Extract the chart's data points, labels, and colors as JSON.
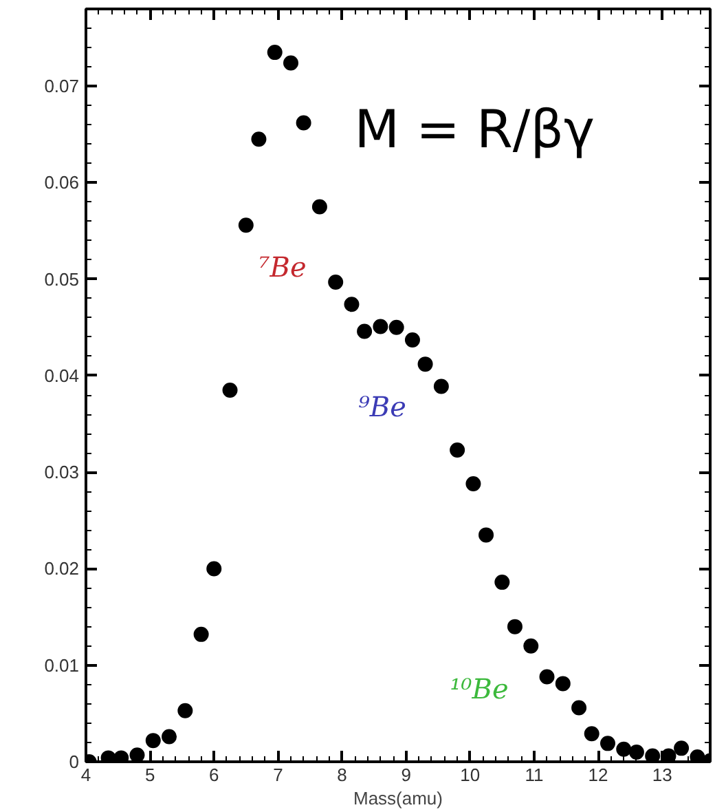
{
  "chart_data": {
    "type": "scatter",
    "xlabel": "Mass(amu)",
    "x": [
      4.05,
      4.35,
      4.55,
      4.8,
      5.05,
      5.3,
      5.55,
      5.8,
      6.0,
      6.25,
      6.5,
      6.7,
      6.95,
      7.2,
      7.4,
      7.65,
      7.9,
      8.15,
      8.35,
      8.6,
      8.85,
      9.1,
      9.3,
      9.55,
      9.8,
      10.05,
      10.25,
      10.5,
      10.7,
      10.95,
      11.2,
      11.45,
      11.7,
      11.9,
      12.15,
      12.4,
      12.6,
      12.85,
      13.1,
      13.3,
      13.55,
      13.75
    ],
    "series": [
      {
        "color": "#000000",
        "values": [
          0.0,
          0.0004,
          0.0004,
          0.0007,
          0.0022,
          0.0026,
          0.0053,
          0.0132,
          0.02,
          0.0385,
          0.0556,
          0.0645,
          0.0735,
          0.0724,
          0.0662,
          0.0575,
          0.0497,
          0.0474,
          0.0446,
          0.0451,
          0.045,
          0.0437,
          0.0412,
          0.0389,
          0.0323,
          0.0288,
          0.0235,
          0.0186,
          0.014,
          0.012,
          0.0088,
          0.0081,
          0.0056,
          0.0029,
          0.0019,
          0.0013,
          0.001,
          0.0006,
          0.0006,
          0.0014,
          0.0005,
          0.0001
        ]
      }
    ],
    "xlim": [
      4,
      13.75
    ],
    "ylim": [
      0,
      0.078
    ],
    "xticks": [
      4,
      5,
      6,
      7,
      8,
      9,
      10,
      11,
      12,
      13
    ],
    "yticks": [
      {
        "value": 0,
        "label": "0"
      },
      0.01,
      0.02,
      0.03,
      0.04,
      0.05,
      0.06,
      0.07
    ],
    "grid": false,
    "marker": "circle",
    "annotations": [
      "M = R/βγ",
      "⁷Be",
      "⁹Be",
      "¹⁰Be"
    ]
  }
}
